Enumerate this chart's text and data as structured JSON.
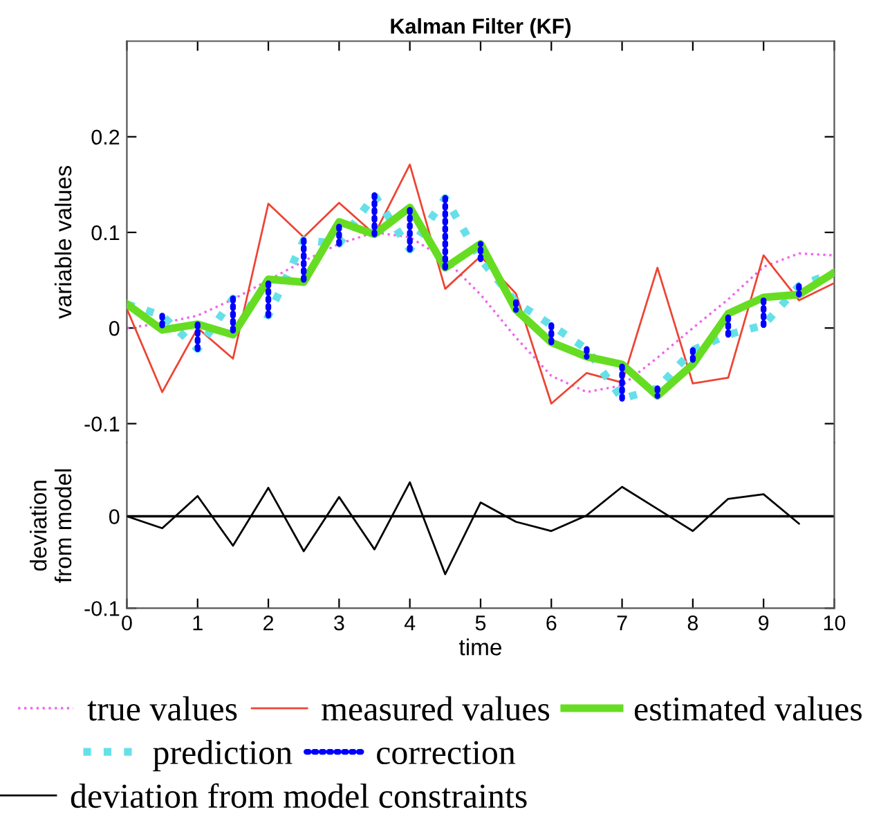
{
  "chart_data": [
    {
      "type": "line",
      "title": "Kalman Filter (KF)",
      "ylabel": "variable values",
      "x": [
        0,
        0.5,
        1,
        1.5,
        2,
        2.5,
        3,
        3.5,
        4,
        4.5,
        5,
        5.5,
        6,
        6.5,
        7,
        7.5,
        8,
        8.5,
        9,
        9.5,
        10
      ],
      "series": [
        {
          "name": "true values",
          "color": "#ee66ee",
          "line_style": "dotted",
          "values": [
            0.0,
            0.005,
            0.013,
            0.03,
            0.05,
            0.07,
            0.088,
            0.1,
            0.095,
            0.072,
            0.035,
            -0.01,
            -0.05,
            -0.067,
            -0.06,
            -0.031,
            0.0,
            0.03,
            0.064,
            0.078,
            0.076
          ]
        },
        {
          "name": "measured values",
          "color": "#ee4433",
          "line_style": "solid",
          "values": [
            0.02,
            -0.067,
            0.0,
            -0.032,
            0.13,
            0.095,
            0.131,
            0.098,
            0.171,
            0.041,
            0.075,
            0.036,
            -0.079,
            -0.047,
            -0.057,
            0.063,
            -0.058,
            -0.052,
            0.076,
            0.029,
            0.047
          ]
        },
        {
          "name": "prediction",
          "color": "#66e0e8",
          "line_style": "dotted",
          "values": [
            0.025,
            0.013,
            -0.022,
            0.031,
            0.013,
            0.092,
            0.088,
            0.139,
            0.082,
            0.136,
            0.072,
            0.027,
            0.003,
            -0.022,
            -0.074,
            -0.063,
            -0.023,
            -0.007,
            0.003,
            0.044,
            0.058
          ]
        },
        {
          "name": "estimated values",
          "color": "#66dd22",
          "line_style": "solid",
          "values": [
            0.025,
            -0.002,
            0.004,
            -0.007,
            0.051,
            0.048,
            0.111,
            0.098,
            0.126,
            0.063,
            0.088,
            0.019,
            -0.015,
            -0.03,
            -0.038,
            -0.071,
            -0.038,
            0.015,
            0.032,
            0.035,
            0.058
          ]
        },
        {
          "name": "correction",
          "color": "#0000ff",
          "line_style": "dotted",
          "x": [
            0.5,
            0.5,
            null,
            1,
            1,
            null,
            1.5,
            1.5,
            null,
            2,
            2,
            null,
            2.5,
            2.5,
            null,
            3,
            3,
            null,
            3.5,
            3.5,
            null,
            4,
            4,
            null,
            4.5,
            4.5,
            null,
            5,
            5,
            null,
            5.5,
            5.5,
            null,
            6,
            6,
            null,
            6.5,
            6.5,
            null,
            7,
            7,
            null,
            7.5,
            7.5,
            null,
            8,
            8,
            null,
            8.5,
            8.5,
            null,
            9,
            9,
            null,
            9.5,
            9.5,
            null
          ],
          "values": [
            0.013,
            -0.002,
            null,
            -0.022,
            0.004,
            null,
            0.031,
            -0.007,
            null,
            0.013,
            0.051,
            null,
            0.092,
            0.048,
            null,
            0.088,
            0.111,
            null,
            0.139,
            0.098,
            null,
            0.082,
            0.126,
            null,
            0.136,
            0.063,
            null,
            0.072,
            0.088,
            null,
            0.027,
            0.019,
            null,
            0.003,
            -0.015,
            null,
            -0.022,
            -0.03,
            null,
            -0.074,
            -0.038,
            null,
            -0.063,
            -0.071,
            null,
            -0.023,
            -0.038,
            null,
            -0.007,
            0.015,
            null,
            0.003,
            0.032,
            null,
            0.044,
            0.035,
            null
          ]
        }
      ],
      "xlim": [
        0,
        10
      ],
      "xticks": [
        0,
        1,
        2,
        3,
        4,
        5,
        6,
        7,
        8,
        9,
        10
      ],
      "ylim": [
        -0.12,
        0.3
      ],
      "yticks": [
        -0.1,
        0,
        0.1,
        0.2
      ],
      "tick_labels": "y",
      "grid": false,
      "legend": "bottom"
    },
    {
      "type": "line",
      "xlabel": "time",
      "ylabel": "deviation\nfrom model",
      "x": [
        0,
        0.5,
        1,
        1.5,
        2,
        2.5,
        3,
        3.5,
        4,
        4.5,
        5,
        5.5,
        6,
        6.5,
        7,
        7.5,
        8,
        8.5,
        9,
        9.5
      ],
      "series": [
        {
          "name": "deviation from model constraints",
          "color": "#000000",
          "line_style": "solid",
          "values": [
            0.0,
            -0.013,
            0.022,
            -0.032,
            0.031,
            -0.038,
            0.021,
            -0.036,
            0.037,
            -0.063,
            0.015,
            -0.006,
            -0.016,
            0.001,
            0.032,
            0.008,
            -0.016,
            0.019,
            0.024,
            -0.008
          ]
        }
      ],
      "ref_lines": [
        {
          "axis": "y",
          "value": 0,
          "color": "#000000",
          "line_style": "solid"
        }
      ],
      "xlim": [
        0,
        10
      ],
      "xticks": [
        0,
        1,
        2,
        3,
        4,
        5,
        6,
        7,
        8,
        9,
        10
      ],
      "ylim": [
        -0.1,
        0.08
      ],
      "yticks": [
        -0.1,
        0
      ],
      "grid": false,
      "legend": "bottom"
    }
  ]
}
